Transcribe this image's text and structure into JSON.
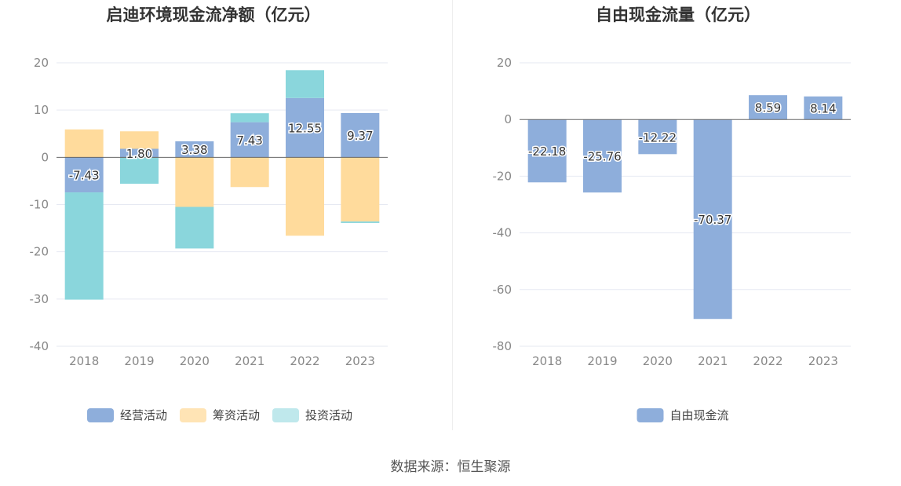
{
  "chart_data": [
    {
      "type": "bar",
      "stacked": true,
      "title": "启迪环境现金流净额（亿元）",
      "categories": [
        "2018",
        "2019",
        "2020",
        "2021",
        "2022",
        "2023"
      ],
      "ylim": [
        -40,
        20
      ],
      "yticks": [
        20,
        10,
        0,
        -10,
        -20,
        -30,
        -40
      ],
      "grid": true,
      "legend_position": "bottom",
      "series": [
        {
          "name": "经营活动",
          "color": "#8eaedb",
          "values": [
            -7.43,
            1.8,
            3.38,
            7.43,
            12.55,
            9.37
          ],
          "labels": [
            "-7.43",
            "1.80",
            "3.38",
            "7.43",
            "12.55",
            "9.37"
          ]
        },
        {
          "name": "筹资活动",
          "color": "#ffdb9c",
          "values": [
            5.9,
            3.7,
            -10.5,
            -6.3,
            -16.6,
            -13.6
          ]
        },
        {
          "name": "投资活动",
          "color": "#8ad6dc",
          "values": [
            -22.7,
            -5.6,
            -8.8,
            1.9,
            5.9,
            -0.3
          ]
        }
      ]
    },
    {
      "type": "bar",
      "title": "自由现金流量（亿元）",
      "categories": [
        "2018",
        "2019",
        "2020",
        "2021",
        "2022",
        "2023"
      ],
      "ylim": [
        -80,
        20
      ],
      "yticks": [
        20,
        0,
        -20,
        -40,
        -60,
        -80
      ],
      "grid": true,
      "legend_position": "bottom",
      "series": [
        {
          "name": "自由现金流",
          "color": "#8eaedb",
          "values": [
            -22.18,
            -25.76,
            -12.22,
            -70.37,
            8.59,
            8.14
          ],
          "labels": [
            "-22.18",
            "-25.76",
            "-12.22",
            "-70.37",
            "8.59",
            "8.14"
          ]
        }
      ]
    }
  ],
  "source": "数据来源：恒生聚源"
}
